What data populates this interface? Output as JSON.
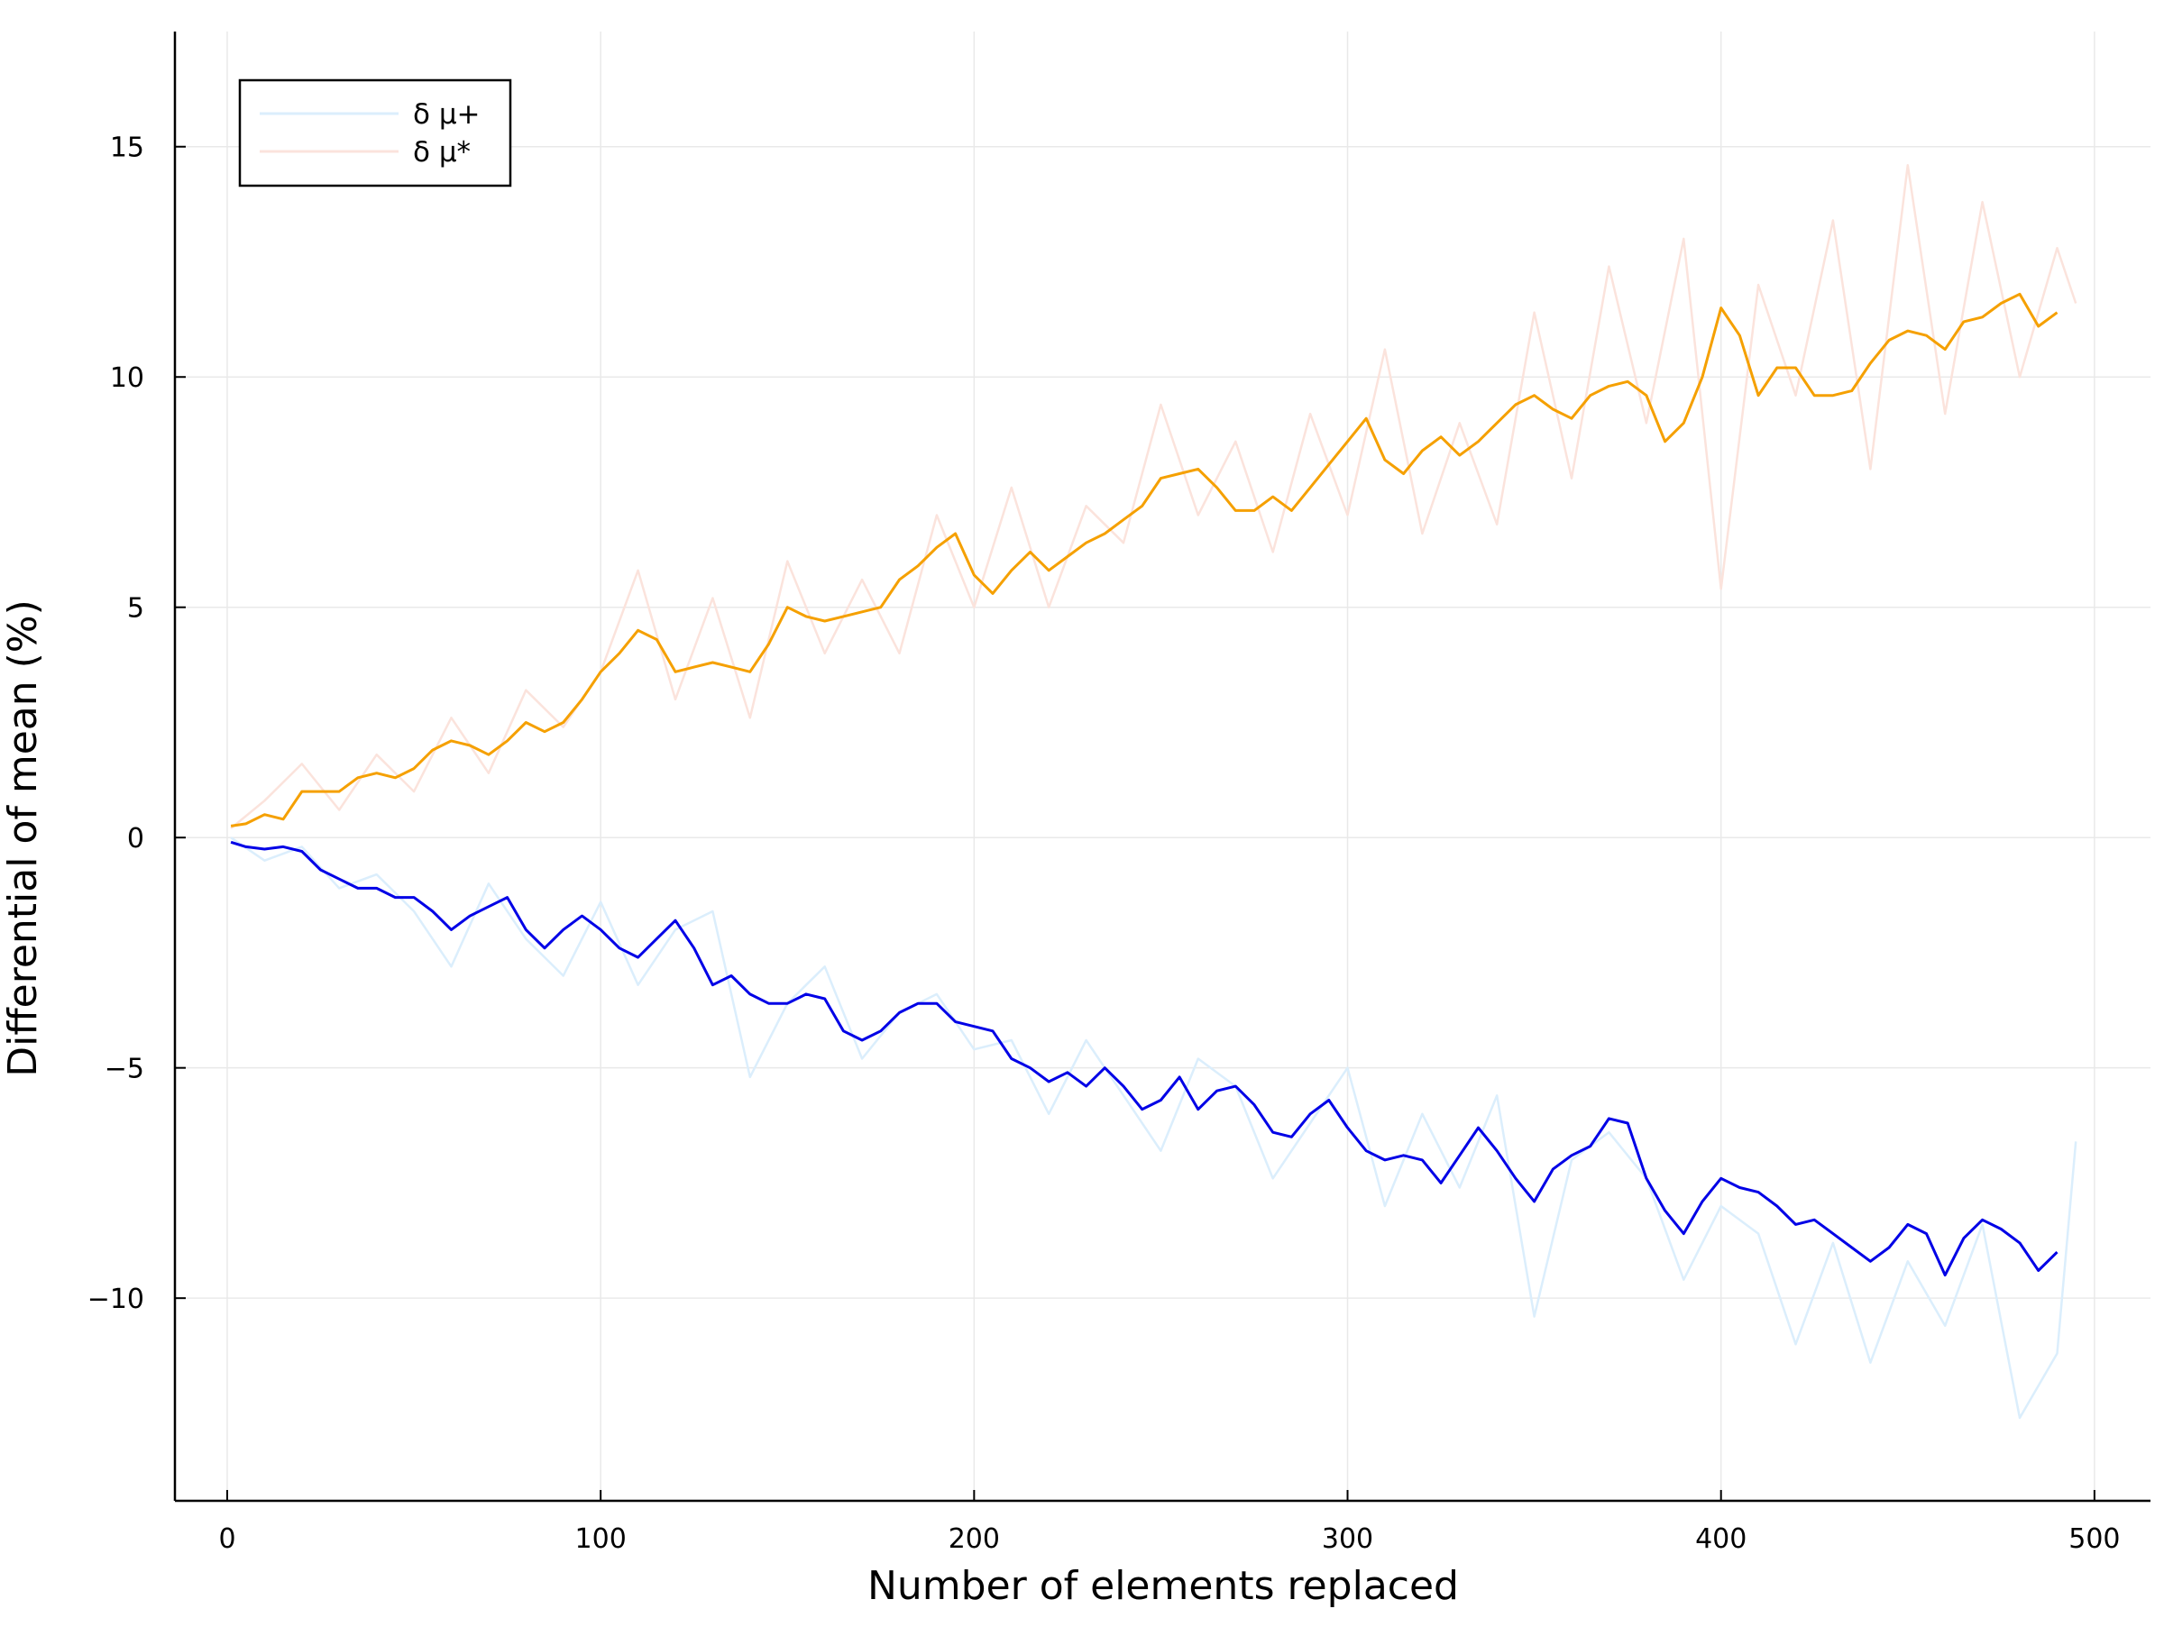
{
  "chart_data": {
    "type": "line",
    "title": "",
    "xlabel": "Number of elements replaced",
    "ylabel": "Differential of mean (%)",
    "xlim": [
      -14,
      515
    ],
    "ylim": [
      -14.4,
      17.5
    ],
    "xticks": [
      0,
      100,
      200,
      300,
      400,
      500
    ],
    "xtick_labels": [
      "0",
      "100",
      "200",
      "300",
      "400",
      "500"
    ],
    "yticks": [
      -10,
      -5,
      0,
      5,
      10,
      15
    ],
    "ytick_labels": [
      "−10",
      "−5",
      "0",
      "5",
      "10",
      "15"
    ],
    "grid": true,
    "legend_position": "top-left",
    "colors": {
      "mu_plus_raw": "#dbeefc",
      "mu_star_raw": "#fbe3dc",
      "mu_plus_smooth": "#0000e6",
      "mu_star_smooth": "#f5a000",
      "grid": "#e9e9e9",
      "axis": "#000000"
    },
    "series": [
      {
        "name": "δ μ+",
        "role": "raw",
        "x": [
          1,
          10,
          20,
          30,
          40,
          50,
          60,
          70,
          80,
          90,
          100,
          110,
          120,
          130,
          140,
          150,
          160,
          170,
          180,
          190,
          200,
          210,
          220,
          230,
          240,
          250,
          260,
          270,
          280,
          290,
          300,
          310,
          320,
          330,
          340,
          350,
          360,
          370,
          380,
          390,
          400,
          410,
          420,
          430,
          440,
          450,
          460,
          470,
          480,
          490,
          495
        ],
        "y": [
          0,
          -0.5,
          -0.2,
          -1.1,
          -0.8,
          -1.6,
          -2.8,
          -1.0,
          -2.2,
          -3.0,
          -1.4,
          -3.2,
          -2.0,
          -1.6,
          -5.2,
          -3.6,
          -2.8,
          -4.8,
          -3.8,
          -3.4,
          -4.6,
          -4.4,
          -6.0,
          -4.4,
          -5.6,
          -6.8,
          -4.8,
          -5.4,
          -7.4,
          -6.2,
          -5.0,
          -8.0,
          -6.0,
          -7.6,
          -5.6,
          -10.4,
          -7.0,
          -6.4,
          -7.4,
          -9.6,
          -8.0,
          -8.6,
          -11.0,
          -8.8,
          -11.4,
          -9.2,
          -10.6,
          -8.4,
          -12.6,
          -11.2,
          -6.6
        ]
      },
      {
        "name": "δ μ*",
        "role": "raw",
        "x": [
          1,
          10,
          20,
          30,
          40,
          50,
          60,
          70,
          80,
          90,
          100,
          110,
          120,
          130,
          140,
          150,
          160,
          170,
          180,
          190,
          200,
          210,
          220,
          230,
          240,
          250,
          260,
          270,
          280,
          290,
          300,
          310,
          320,
          330,
          340,
          350,
          360,
          370,
          380,
          390,
          400,
          410,
          420,
          430,
          440,
          450,
          460,
          470,
          480,
          490,
          495
        ],
        "y": [
          0.2,
          0.8,
          1.6,
          0.6,
          1.8,
          1.0,
          2.6,
          1.4,
          3.2,
          2.4,
          3.6,
          5.8,
          3.0,
          5.2,
          2.6,
          6.0,
          4.0,
          5.6,
          4.0,
          7.0,
          5.0,
          7.6,
          5.0,
          7.2,
          6.4,
          9.4,
          7.0,
          8.6,
          6.2,
          9.2,
          7.0,
          10.6,
          6.6,
          9.0,
          6.8,
          11.4,
          7.8,
          12.4,
          9.0,
          13.0,
          5.4,
          12.0,
          9.6,
          13.4,
          8.0,
          14.6,
          9.2,
          13.8,
          10.0,
          12.8,
          11.6
        ]
      },
      {
        "name": "δ μ+ (smoothed)",
        "role": "smooth",
        "x": [
          1,
          5,
          10,
          15,
          20,
          25,
          30,
          35,
          40,
          45,
          50,
          55,
          60,
          65,
          70,
          75,
          80,
          85,
          90,
          95,
          100,
          105,
          110,
          115,
          120,
          125,
          130,
          135,
          140,
          145,
          150,
          155,
          160,
          165,
          170,
          175,
          180,
          185,
          190,
          195,
          200,
          205,
          210,
          215,
          220,
          225,
          230,
          235,
          240,
          245,
          250,
          255,
          260,
          265,
          270,
          275,
          280,
          285,
          290,
          295,
          300,
          305,
          310,
          315,
          320,
          325,
          330,
          335,
          340,
          345,
          350,
          355,
          360,
          365,
          370,
          375,
          380,
          385,
          390,
          395,
          400,
          405,
          410,
          415,
          420,
          425,
          430,
          435,
          440,
          445,
          450,
          455,
          460,
          465,
          470,
          475,
          480,
          485,
          490
        ],
        "y": [
          -0.1,
          -0.2,
          -0.25,
          -0.2,
          -0.3,
          -0.7,
          -0.9,
          -1.1,
          -1.1,
          -1.3,
          -1.3,
          -1.6,
          -2.0,
          -1.7,
          -1.5,
          -1.3,
          -2.0,
          -2.4,
          -2.0,
          -1.7,
          -2.0,
          -2.4,
          -2.6,
          -2.2,
          -1.8,
          -2.4,
          -3.2,
          -3.0,
          -3.4,
          -3.6,
          -3.6,
          -3.4,
          -3.5,
          -4.2,
          -4.4,
          -4.2,
          -3.8,
          -3.6,
          -3.6,
          -4.0,
          -4.1,
          -4.2,
          -4.8,
          -5.0,
          -5.3,
          -5.1,
          -5.4,
          -5.0,
          -5.4,
          -5.9,
          -5.7,
          -5.2,
          -5.9,
          -5.5,
          -5.4,
          -5.8,
          -6.4,
          -6.5,
          -6.0,
          -5.7,
          -6.3,
          -6.8,
          -7.0,
          -6.9,
          -7.0,
          -7.5,
          -6.9,
          -6.3,
          -6.8,
          -7.4,
          -7.9,
          -7.2,
          -6.9,
          -6.7,
          -6.1,
          -6.2,
          -7.4,
          -8.1,
          -8.6,
          -7.9,
          -7.4,
          -7.6,
          -7.7,
          -8.0,
          -8.4,
          -8.3,
          -8.6,
          -8.9,
          -9.2,
          -8.9,
          -8.4,
          -8.6,
          -9.5,
          -8.7,
          -8.3,
          -8.5,
          -8.8,
          -9.4,
          -9.0
        ]
      },
      {
        "name": "δ μ* (smoothed)",
        "role": "smooth",
        "x": [
          1,
          5,
          10,
          15,
          20,
          25,
          30,
          35,
          40,
          45,
          50,
          55,
          60,
          65,
          70,
          75,
          80,
          85,
          90,
          95,
          100,
          105,
          110,
          115,
          120,
          125,
          130,
          135,
          140,
          145,
          150,
          155,
          160,
          165,
          170,
          175,
          180,
          185,
          190,
          195,
          200,
          205,
          210,
          215,
          220,
          225,
          230,
          235,
          240,
          245,
          250,
          255,
          260,
          265,
          270,
          275,
          280,
          285,
          290,
          295,
          300,
          305,
          310,
          315,
          320,
          325,
          330,
          335,
          340,
          345,
          350,
          355,
          360,
          365,
          370,
          375,
          380,
          385,
          390,
          395,
          400,
          405,
          410,
          415,
          420,
          425,
          430,
          435,
          440,
          445,
          450,
          455,
          460,
          465,
          470,
          475,
          480,
          485,
          490
        ],
        "y": [
          0.25,
          0.3,
          0.5,
          0.4,
          1.0,
          1.0,
          1.0,
          1.3,
          1.4,
          1.3,
          1.5,
          1.9,
          2.1,
          2.0,
          1.8,
          2.1,
          2.5,
          2.3,
          2.5,
          3.0,
          3.6,
          4.0,
          4.5,
          4.3,
          3.6,
          3.7,
          3.8,
          3.7,
          3.6,
          4.2,
          5.0,
          4.8,
          4.7,
          4.8,
          4.9,
          5.0,
          5.6,
          5.9,
          6.3,
          6.6,
          5.7,
          5.3,
          5.8,
          6.2,
          5.8,
          6.1,
          6.4,
          6.6,
          6.9,
          7.2,
          7.8,
          7.9,
          8.0,
          7.6,
          7.1,
          7.1,
          7.4,
          7.1,
          7.6,
          8.1,
          8.6,
          9.1,
          8.2,
          7.9,
          8.4,
          8.7,
          8.3,
          8.6,
          9.0,
          9.4,
          9.6,
          9.3,
          9.1,
          9.6,
          9.8,
          9.9,
          9.6,
          8.6,
          9.0,
          10.0,
          11.5,
          10.9,
          9.6,
          10.2,
          10.2,
          9.6,
          9.6,
          9.7,
          10.3,
          10.8,
          11.0,
          10.9,
          10.6,
          11.2,
          11.3,
          11.6,
          11.8,
          11.1,
          11.4
        ]
      }
    ],
    "legend": [
      {
        "label": "δ μ+",
        "color": "#dbeefc"
      },
      {
        "label": "δ μ*",
        "color": "#fbe3dc"
      }
    ]
  }
}
